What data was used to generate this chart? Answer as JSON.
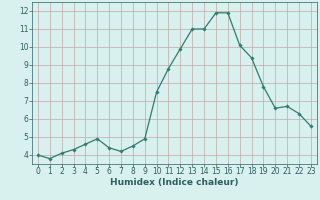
{
  "title": "",
  "xlabel": "Humidex (Indice chaleur)",
  "ylabel": "",
  "x": [
    0,
    1,
    2,
    3,
    4,
    5,
    6,
    7,
    8,
    9,
    10,
    11,
    12,
    13,
    14,
    15,
    16,
    17,
    18,
    19,
    20,
    21,
    22,
    23
  ],
  "y": [
    4.0,
    3.8,
    4.1,
    4.3,
    4.6,
    4.9,
    4.4,
    4.2,
    4.5,
    4.9,
    7.5,
    8.8,
    9.9,
    11.0,
    11.0,
    11.9,
    11.9,
    10.1,
    9.4,
    7.8,
    6.6,
    6.7,
    6.3,
    5.6
  ],
  "line_color": "#2e7d6e",
  "marker": "D",
  "marker_size": 1.8,
  "line_width": 0.9,
  "bg_color": "#d8f0ee",
  "grid_color": "#c0a8a8",
  "ylim": [
    3.5,
    12.5
  ],
  "xlim": [
    -0.5,
    23.5
  ],
  "yticks": [
    4,
    5,
    6,
    7,
    8,
    9,
    10,
    11,
    12
  ],
  "xticks": [
    0,
    1,
    2,
    3,
    4,
    5,
    6,
    7,
    8,
    9,
    10,
    11,
    12,
    13,
    14,
    15,
    16,
    17,
    18,
    19,
    20,
    21,
    22,
    23
  ],
  "tick_fontsize": 5.5,
  "xlabel_fontsize": 6.5,
  "axis_color": "#2e6060"
}
